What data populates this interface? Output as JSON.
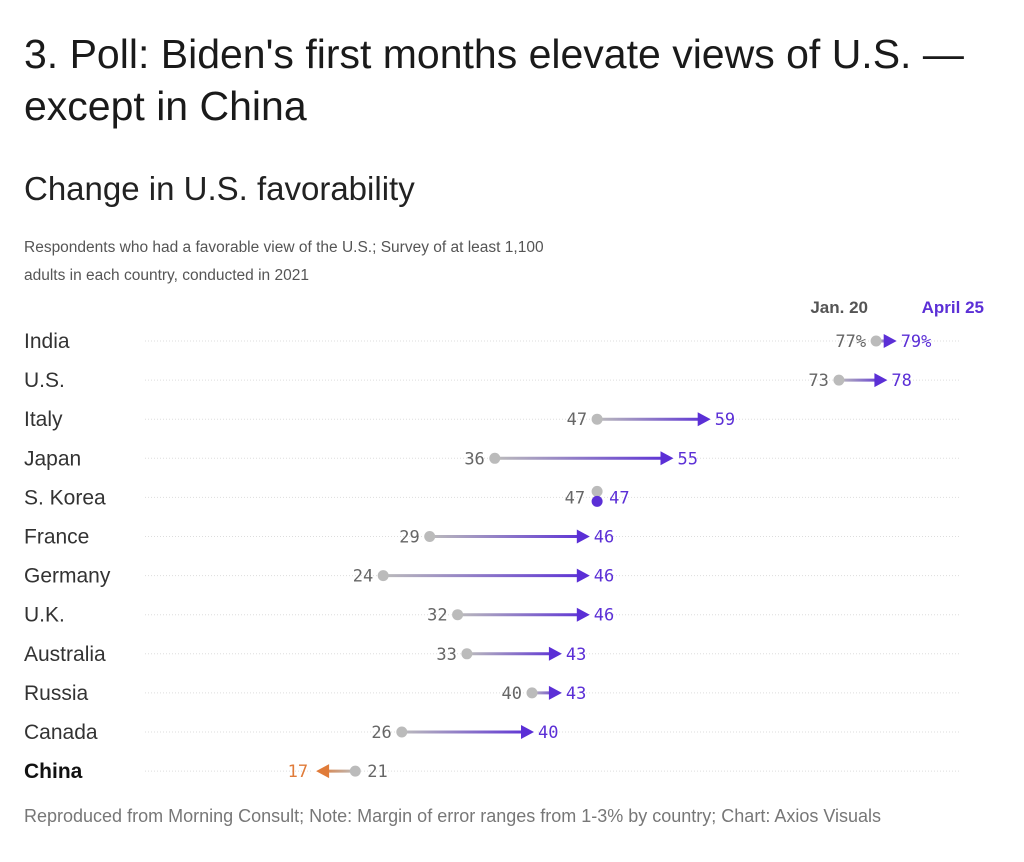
{
  "headline": "3. Poll: Biden's first months elevate views of U.S. — except in China",
  "chart_data": {
    "type": "dumbbell",
    "title": "Change in U.S. favorability",
    "subtitle": "Respondents who had a favorable view of the U.S.; Survey of at least 1,100 adults in each country, conducted in 2021",
    "series": [
      {
        "name": "Jan. 20",
        "color": "#bbbbbb"
      },
      {
        "name": "April 25",
        "color": "#5b2fd6"
      }
    ],
    "categories": [
      "India",
      "U.S.",
      "Italy",
      "Japan",
      "S. Korea",
      "France",
      "Germany",
      "U.K.",
      "Australia",
      "Russia",
      "Canada",
      "China"
    ],
    "jan20": [
      77,
      73,
      47,
      36,
      47,
      29,
      24,
      32,
      33,
      40,
      26,
      21
    ],
    "april25": [
      79,
      78,
      59,
      55,
      47,
      46,
      46,
      46,
      43,
      43,
      40,
      17
    ],
    "start_labels": [
      "77%",
      "73",
      "47",
      "36",
      "47",
      "29",
      "24",
      "32",
      "33",
      "40",
      "26",
      "21"
    ],
    "end_labels": [
      "79%",
      "78",
      "59",
      "55",
      "47",
      "46",
      "46",
      "46",
      "43",
      "43",
      "40",
      "17"
    ],
    "highlight": "China",
    "colors": {
      "increase": "#5b2fd6",
      "decrease": "#e07b39",
      "start": "#bbbbbb",
      "grid": "#dddddd"
    }
  },
  "footer": "Reproduced from Morning Consult; Note: Margin of error ranges from 1-3% by country; Chart: Axios Visuals"
}
